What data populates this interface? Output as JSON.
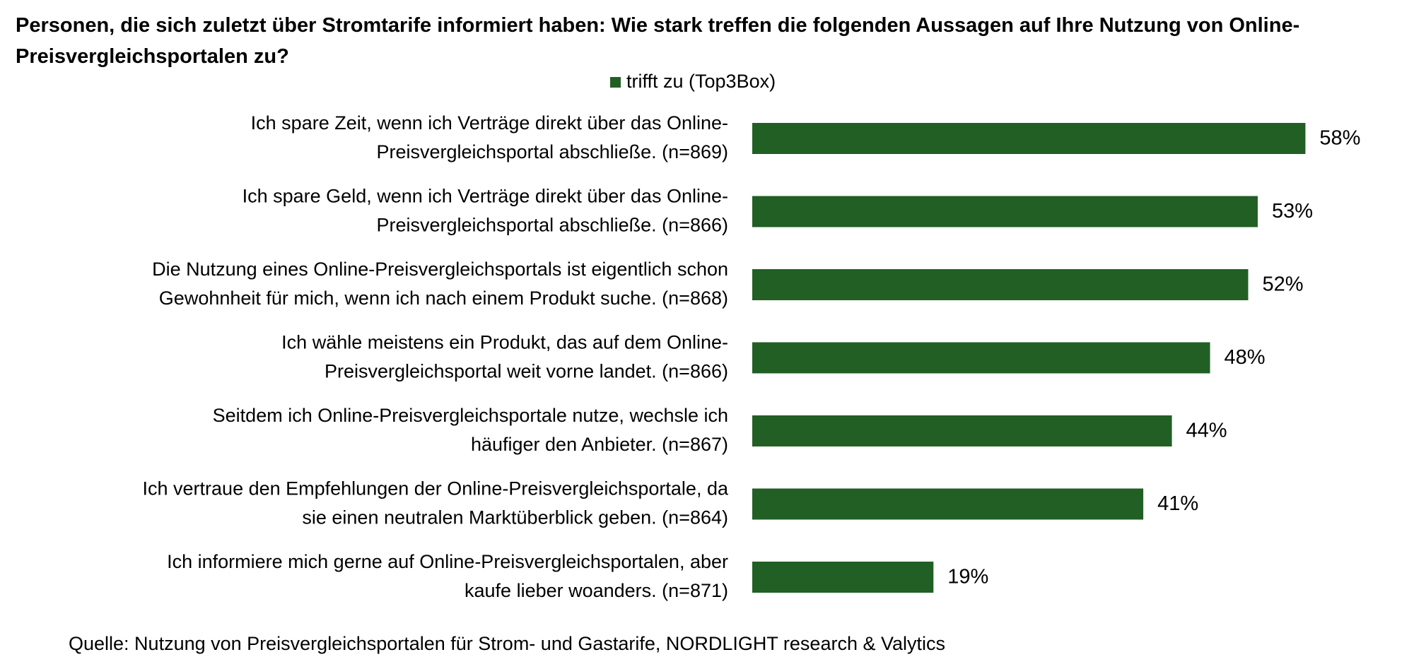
{
  "chart_data": {
    "type": "bar",
    "orientation": "horizontal",
    "title": "Personen, die sich zuletzt über Stromtarife informiert haben: Wie stark treffen die folgenden Aussagen auf Ihre Nutzung von Online-Preisvergleichsportalen zu?",
    "categories": [
      [
        "Ich spare Zeit, wenn ich Verträge direkt über das Online-",
        "Preisvergleichsportal abschließe. (n=869)"
      ],
      [
        "Ich spare Geld, wenn ich Verträge direkt über das Online-",
        "Preisvergleichsportal abschließe. (n=866)"
      ],
      [
        "Die Nutzung eines Online-Preisvergleichsportals ist eigentlich schon",
        "Gewohnheit für mich, wenn ich nach einem Produkt suche. (n=868)"
      ],
      [
        "Ich wähle meistens ein Produkt, das auf dem Online-",
        "Preisvergleichsportal weit vorne landet. (n=866)"
      ],
      [
        "Seitdem ich Online-Preisvergleichsportale nutze, wechsle ich",
        "häufiger den Anbieter. (n=867)"
      ],
      [
        "Ich vertraue den Empfehlungen der Online-Preisvergleichsportale, da",
        "sie einen neutralen Marktüberblick geben. (n=864)"
      ],
      [
        "Ich informiere mich gerne auf Online-Preisvergleichsportalen, aber",
        "kaufe lieber woanders. (n=871)"
      ]
    ],
    "series": [
      {
        "name": "trifft zu (Top3Box)",
        "color": "#215f24",
        "values": [
          58,
          53,
          52,
          48,
          44,
          41,
          19
        ],
        "value_labels": [
          "58%",
          "53%",
          "52%",
          "48%",
          "44%",
          "41%",
          "19%"
        ]
      }
    ],
    "legend": "top",
    "source": "Quelle: Nutzung von Preisvergleichsportalen für Strom- und Gastarife, NORDLIGHT research & Valytics"
  }
}
